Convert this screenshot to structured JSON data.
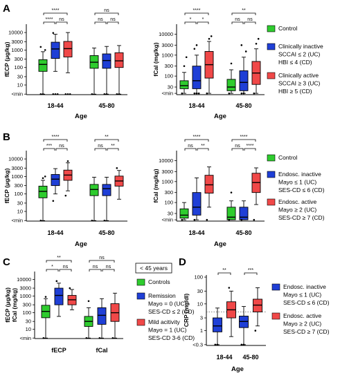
{
  "chart_data": [
    {
      "panel": "A",
      "type": "box",
      "ylabel": "fECP (μg/kg)",
      "ytick_labels": [
        "<min",
        "10",
        "30",
        "100",
        "300",
        "1000",
        "3000",
        "10000"
      ],
      "yticks": [
        3,
        10,
        30,
        100,
        300,
        1000,
        3000,
        10000
      ],
      "ylim": [
        2.8,
        30000
      ],
      "xlabel": "Age",
      "categories": [
        "18-44",
        "45-80"
      ],
      "series": [
        {
          "color": "#2ecc2e",
          "boxes": [
            {
              "min": 3,
              "q1": 60,
              "med": 150,
              "q3": 280,
              "max": 800,
              "outliers": [
                3,
                3,
                1000,
                1500
              ]
            },
            {
              "min": 3,
              "q1": 90,
              "med": 200,
              "q3": 480,
              "max": 1300,
              "outliers": [
                3
              ]
            }
          ]
        },
        {
          "color": "#1f3fd6",
          "boxes": [
            {
              "min": 60,
              "q1": 330,
              "med": 1150,
              "q3": 2800,
              "max": 8000,
              "outliers": [
                3,
                3,
                3,
                9500
              ]
            },
            {
              "min": 3,
              "q1": 90,
              "med": 250,
              "q3": 600,
              "max": 1600,
              "outliers": [
                3,
                3
              ]
            }
          ]
        },
        {
          "color": "#f04848",
          "boxes": [
            {
              "min": 50,
              "q1": 400,
              "med": 1200,
              "q3": 3100,
              "max": 10000,
              "outliers": [
                3,
                3,
                3
              ]
            },
            {
              "min": 3,
              "q1": 100,
              "med": 240,
              "q3": 700,
              "max": 1800,
              "outliers": [
                3,
                3
              ]
            }
          ]
        }
      ],
      "sig_labels": [
        "****",
        "****",
        "ns",
        "ns",
        "ns",
        "ns"
      ]
    },
    {
      "panel": "A2",
      "type": "box",
      "ylabel": "fCal (mg/kg)",
      "ytick_labels": [
        "<min",
        "30",
        "100",
        "300",
        "1000",
        "3000",
        "10000"
      ],
      "yticks": [
        15,
        30,
        100,
        300,
        1000,
        3000,
        10000
      ],
      "ylim": [
        13,
        30000
      ],
      "xlabel": "Age",
      "categories": [
        "18-44",
        "45-80"
      ],
      "series": [
        {
          "color": "#2ecc2e",
          "boxes": [
            {
              "min": 15,
              "q1": 25,
              "med": 35,
              "q3": 60,
              "max": 150,
              "outliers": [
                15,
                300,
                800
              ]
            },
            {
              "min": 15,
              "q1": 20,
              "med": 30,
              "q3": 70,
              "max": 200,
              "outliers": [
                15,
                400
              ]
            }
          ]
        },
        {
          "color": "#1f3fd6",
          "boxes": [
            {
              "min": 15,
              "q1": 25,
              "med": 60,
              "q3": 300,
              "max": 1000,
              "outliers": [
                15,
                15,
                15,
                2000,
                3000
              ]
            },
            {
              "min": 15,
              "q1": 20,
              "med": 50,
              "q3": 180,
              "max": 800,
              "outliers": [
                15,
                15,
                1500,
                3000
              ]
            }
          ]
        },
        {
          "color": "#f04848",
          "boxes": [
            {
              "min": 15,
              "q1": 80,
              "med": 350,
              "q3": 1500,
              "max": 4500,
              "outliers": [
                15,
                6000,
                8000
              ]
            },
            {
              "min": 15,
              "q1": 40,
              "med": 140,
              "q3": 500,
              "max": 2000,
              "outliers": [
                15,
                3500,
                6000
              ]
            }
          ]
        }
      ],
      "sig_labels": [
        "****",
        "*",
        "*",
        "**",
        "ns",
        "ns"
      ]
    },
    {
      "panel": "B",
      "type": "box",
      "ylabel": "fECP (μg/kg)",
      "ytick_labels": [
        "<min",
        "10",
        "30",
        "100",
        "300",
        "1000",
        "3000",
        "10000"
      ],
      "yticks": [
        3,
        10,
        30,
        100,
        300,
        1000,
        3000,
        10000
      ],
      "ylim": [
        2.8,
        30000
      ],
      "xlabel": "Age",
      "categories": [
        "18-44",
        "45-80"
      ],
      "series": [
        {
          "color": "#2ecc2e",
          "boxes": [
            {
              "min": 3,
              "q1": 60,
              "med": 140,
              "q3": 280,
              "max": 600,
              "outliers": [
                3,
                800,
                1000
              ]
            },
            {
              "min": 3,
              "q1": 80,
              "med": 180,
              "q3": 350,
              "max": 900,
              "outliers": [
                3
              ]
            }
          ]
        },
        {
          "color": "#1f3fd6",
          "boxes": [
            {
              "min": 100,
              "q1": 300,
              "med": 700,
              "q3": 1300,
              "max": 2800,
              "outliers": [
                40
              ]
            },
            {
              "min": 3,
              "q1": 80,
              "med": 200,
              "q3": 350,
              "max": 900,
              "outliers": [
                3
              ]
            }
          ]
        },
        {
          "color": "#f04848",
          "boxes": [
            {
              "min": 150,
              "q1": 600,
              "med": 1200,
              "q3": 2300,
              "max": 6000,
              "outliers": [
                80,
                7500
              ]
            },
            {
              "min": 50,
              "q1": 280,
              "med": 550,
              "q3": 1050,
              "max": 2200,
              "outliers": [
                3000
              ]
            }
          ]
        }
      ],
      "sig_labels": [
        "****",
        "***",
        "ns",
        "**",
        "ns",
        "**"
      ]
    },
    {
      "panel": "B2",
      "type": "box",
      "ylabel": "fCal (mg/kg)",
      "ytick_labels": [
        "<min",
        "30",
        "100",
        "300",
        "1000",
        "3000",
        "10000"
      ],
      "yticks": [
        15,
        30,
        100,
        300,
        1000,
        3000,
        10000
      ],
      "ylim": [
        13,
        30000
      ],
      "xlabel": "Age",
      "categories": [
        "18-44",
        "45-80"
      ],
      "series": [
        {
          "color": "#2ecc2e",
          "boxes": [
            {
              "min": 15,
              "q1": 18,
              "med": 25,
              "q3": 50,
              "max": 100,
              "outliers": [
                15
              ]
            },
            {
              "min": 15,
              "q1": 15,
              "med": 20,
              "q3": 60,
              "max": 120,
              "outliers": [
                15,
                300
              ]
            }
          ]
        },
        {
          "color": "#1f3fd6",
          "boxes": [
            {
              "min": 15,
              "q1": 25,
              "med": 60,
              "q3": 300,
              "max": 1500,
              "outliers": [
                15
              ]
            },
            {
              "min": 15,
              "q1": 15,
              "med": 20,
              "q3": 60,
              "max": 120,
              "outliers": [
                15
              ]
            }
          ]
        },
        {
          "color": "#f04848",
          "boxes": [
            {
              "min": 60,
              "q1": 280,
              "med": 700,
              "q3": 2000,
              "max": 5000,
              "outliers": [
                15
              ]
            },
            {
              "min": 80,
              "q1": 300,
              "med": 900,
              "q3": 2500,
              "max": 4500,
              "outliers": [
                15
              ]
            }
          ]
        }
      ],
      "sig_labels": [
        "****",
        "ns",
        "**",
        "****",
        "ns",
        "****"
      ]
    },
    {
      "panel": "C",
      "type": "box",
      "ylabel": "fECP (μg/kg)\nfCal (mg/kg)",
      "ytick_labels": [
        "<min",
        "10",
        "30",
        "100",
        "300",
        "1000",
        "3000",
        "10000"
      ],
      "yticks": [
        3,
        10,
        30,
        100,
        300,
        1000,
        3000,
        10000
      ],
      "ylim": [
        2.8,
        30000
      ],
      "categories": [
        "fECP",
        "fCal"
      ],
      "series": [
        {
          "color": "#2ecc2e",
          "boxes": [
            {
              "min": 3,
              "q1": 50,
              "med": 120,
              "q3": 280,
              "max": 700,
              "outliers": [
                3,
                900
              ]
            },
            {
              "min": 3,
              "q1": 15,
              "med": 30,
              "q3": 60,
              "max": 200,
              "outliers": [
                3,
                500
              ]
            }
          ]
        },
        {
          "color": "#1f3fd6",
          "boxes": [
            {
              "min": 60,
              "q1": 300,
              "med": 1100,
              "q3": 3000,
              "max": 6000,
              "outliers": [
                8000
              ]
            },
            {
              "min": 3,
              "q1": 20,
              "med": 70,
              "q3": 200,
              "max": 700,
              "outliers": [
                3
              ]
            }
          ]
        },
        {
          "color": "#f04848",
          "boxes": [
            {
              "min": 150,
              "q1": 300,
              "med": 600,
              "q3": 1100,
              "max": 2500,
              "outliers": [
                3000
              ]
            },
            {
              "min": 3,
              "q1": 30,
              "med": 100,
              "q3": 350,
              "max": 1500,
              "outliers": [
                3
              ]
            }
          ]
        }
      ],
      "sig_labels": [
        "**",
        "*",
        "ns",
        "ns",
        "ns",
        "ns"
      ],
      "legend_title": "< 45 years"
    },
    {
      "panel": "D",
      "type": "box",
      "ylabel": "CRP (mg/dl)",
      "ytick_labels": [
        "<0.3",
        "1",
        "3",
        "10",
        "30",
        "100"
      ],
      "yticks": [
        0.3,
        1,
        3,
        10,
        30,
        100
      ],
      "ylim": [
        0.28,
        120
      ],
      "xlabel": "Age",
      "categories": [
        "18-44",
        "45-80"
      ],
      "reference_line": 5,
      "series": [
        {
          "color": "#1f3fd6",
          "boxes": [
            {
              "min": 0.3,
              "q1": 0.9,
              "med": 1.5,
              "q3": 3,
              "max": 7,
              "outliers": [
                0.3,
                0.3
              ]
            },
            {
              "min": 0.3,
              "q1": 1.3,
              "med": 2.2,
              "q3": 3.5,
              "max": 8,
              "outliers": [
                0.3,
                0.3
              ]
            }
          ]
        },
        {
          "color": "#f04848",
          "boxes": [
            {
              "min": 0.6,
              "q1": 3,
              "med": 6,
              "q3": 12,
              "max": 30,
              "outliers": [
                40
              ]
            },
            {
              "min": 1.5,
              "q1": 5,
              "med": 9,
              "q3": 15,
              "max": 40,
              "outliers": [
                1
              ]
            }
          ]
        }
      ],
      "sig_labels": [
        "**",
        "***"
      ]
    }
  ],
  "panel_letters": [
    "A",
    "B",
    "C",
    "D"
  ],
  "legend_A": [
    {
      "color": "#2ecc2e",
      "lines": [
        "Control"
      ]
    },
    {
      "color": "#1f3fd6",
      "lines": [
        "Clinically inactive",
        "SCCAI ≤ 2 (UC)",
        "HBI ≤ 4 (CD)"
      ]
    },
    {
      "color": "#f04848",
      "lines": [
        "Clinically active",
        "SCCAI ≥ 3 (UC)",
        "HBI ≥ 5 (CD)"
      ]
    }
  ],
  "legend_B": [
    {
      "color": "#2ecc2e",
      "lines": [
        "Control"
      ]
    },
    {
      "color": "#1f3fd6",
      "lines": [
        "Endosc. inactive",
        "Mayo ≤ 1 (UC)",
        "SES-CD ≤ 6 (CD)"
      ]
    },
    {
      "color": "#f04848",
      "lines": [
        "Endosc. active",
        "Mayo ≥ 2 (UC)",
        "SES-CD ≥ 7 (CD)"
      ]
    }
  ],
  "legend_C": [
    {
      "color": "#2ecc2e",
      "lines": [
        "Controls"
      ]
    },
    {
      "color": "#1f3fd6",
      "lines": [
        "Remission",
        "Mayo = 0 (UC)",
        "SES-CD ≤ 2 (CD)"
      ]
    },
    {
      "color": "#f04848",
      "lines": [
        "Mild acitivity",
        "Mayo = 1 (UC)",
        "SES-CD 3-6 (CD)"
      ]
    }
  ],
  "legend_D": [
    {
      "color": "#1f3fd6",
      "lines": [
        "Endosc. inactive",
        "Mayo ≤ 1 (UC)",
        "SES-CD ≤ 6 (CD)"
      ]
    },
    {
      "color": "#f04848",
      "lines": [
        "Endosc. active",
        "Mayo ≥ 2 (UC)",
        "SES-CD ≥ 7 (CD)"
      ]
    }
  ]
}
